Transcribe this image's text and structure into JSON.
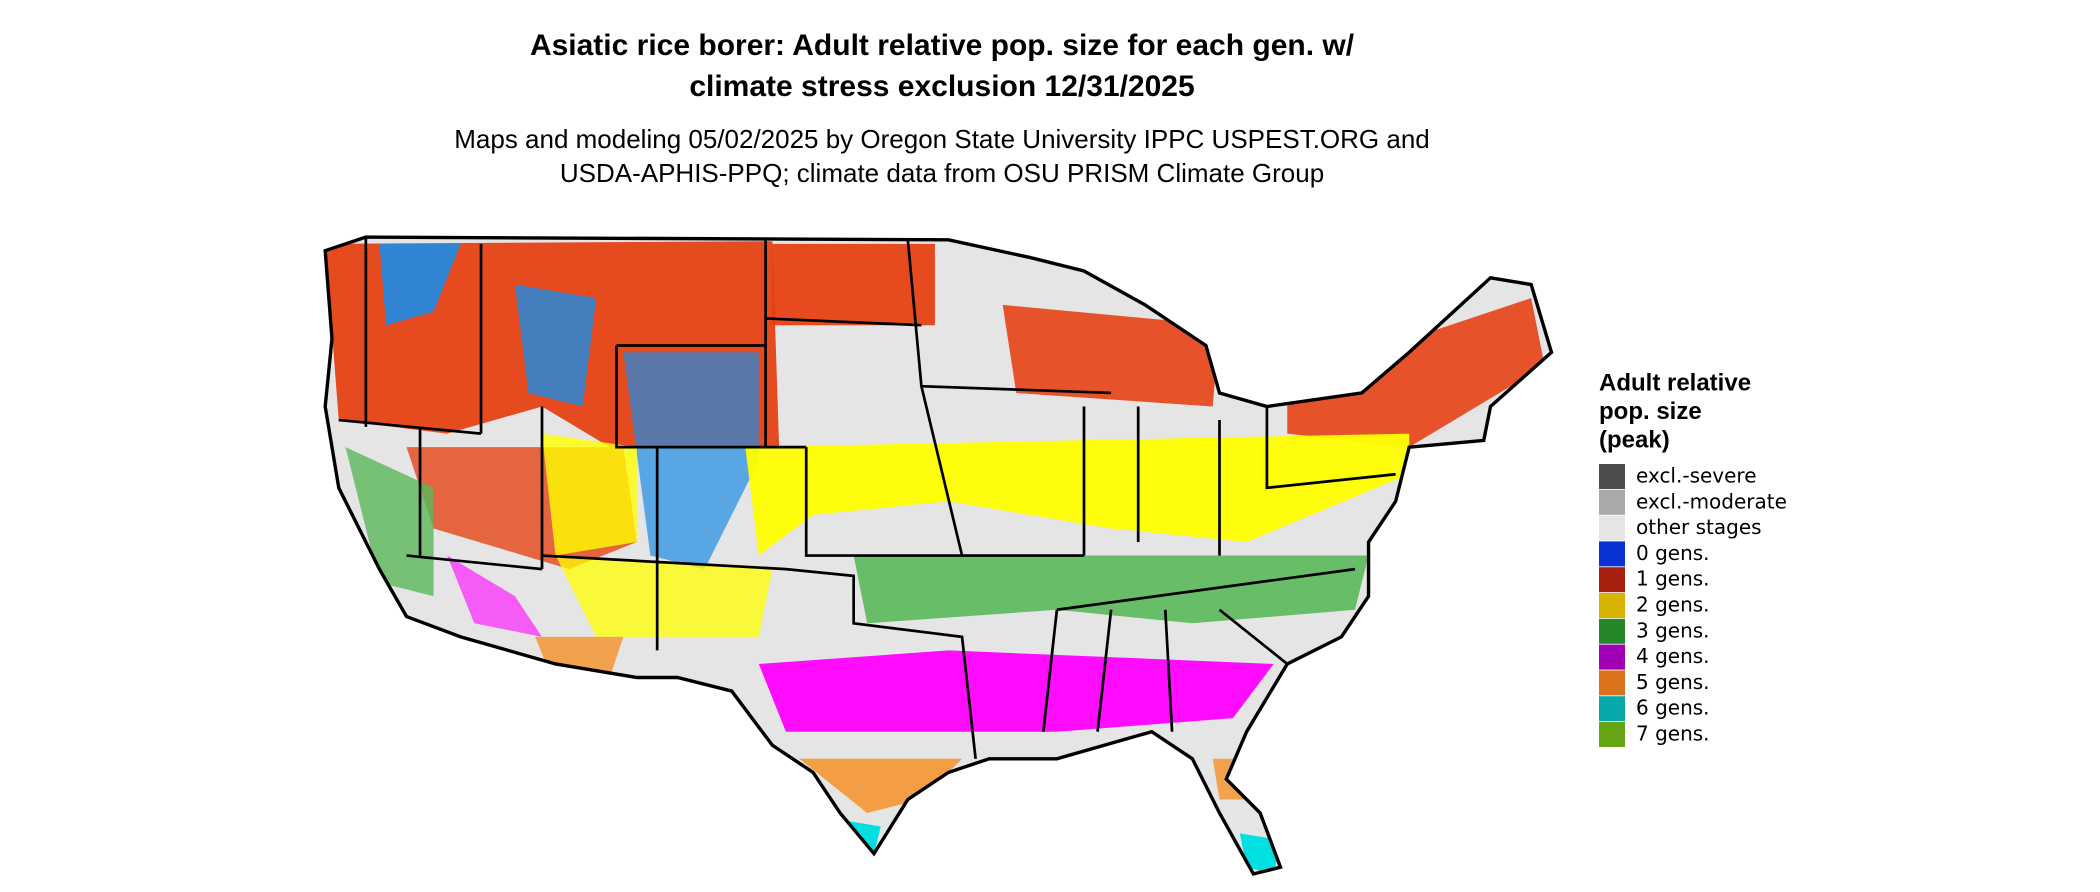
{
  "title": {
    "lines": [
      "Asiatic rice borer: Adult relative pop. size for each gen. w/",
      "climate stress exclusion 12/31/2025"
    ]
  },
  "subtitle": {
    "lines": [
      "Maps and modeling 05/02/2025 by Oregon State University IPPC USPEST.ORG and",
      "USDA-APHIS-PPQ; climate data from OSU PRISM Climate Group"
    ]
  },
  "legend": {
    "title_lines": [
      "Adult relative",
      "pop. size",
      "(peak)"
    ],
    "items": [
      {
        "label": "excl.-severe",
        "color": "#4d4d4d"
      },
      {
        "label": "excl.-moderate",
        "color": "#aaaaaa"
      },
      {
        "label": "other stages",
        "color": "#e5e5e5"
      },
      {
        "label": "0 gens.",
        "color": "#0a32d2"
      },
      {
        "label": "1 gens.",
        "color": "#a8200e"
      },
      {
        "label": "2 gens.",
        "color": "#d8b400"
      },
      {
        "label": "3 gens.",
        "color": "#25862a"
      },
      {
        "label": "4 gens.",
        "color": "#a100b5"
      },
      {
        "label": "5 gens.",
        "color": "#d9721a"
      },
      {
        "label": "6 gens.",
        "color": "#0aa9a9"
      },
      {
        "label": "7 gens.",
        "color": "#65a515"
      }
    ]
  }
}
